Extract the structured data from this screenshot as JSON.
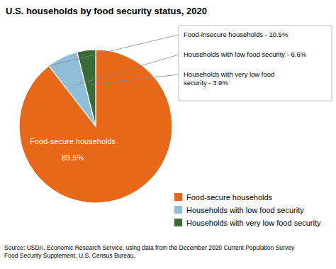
{
  "chart_data": {
    "type": "pie",
    "title": "U.S. households by food security status, 2020",
    "categories": [
      "Food-secure households",
      "Households with low food security",
      "Households with very low food security"
    ],
    "values": [
      89.5,
      6.6,
      3.9
    ],
    "colors": [
      "#E8681A",
      "#90BDD8",
      "#3A6B35"
    ],
    "data_labels": true,
    "value_labels": [
      "89.5%",
      null,
      null
    ],
    "annotations": [
      "Food-insecure households - 10.5%",
      "Households with low food security - 6.6%",
      "Households with very low food\nsecurity - 3.9%"
    ],
    "source": "Source: USDA, Economic Research Service, using data from the December 2020 Current Population Survey\nFood Security Supplement, U.S. Census Bureau.",
    "legend": "lower right"
  }
}
